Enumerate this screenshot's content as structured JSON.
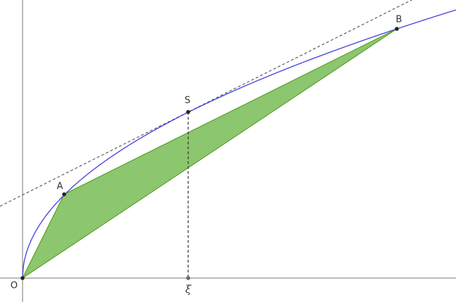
{
  "points": {
    "origin": "O",
    "a": "A",
    "b": "B",
    "s": "S",
    "xi": "ξ"
  }
}
